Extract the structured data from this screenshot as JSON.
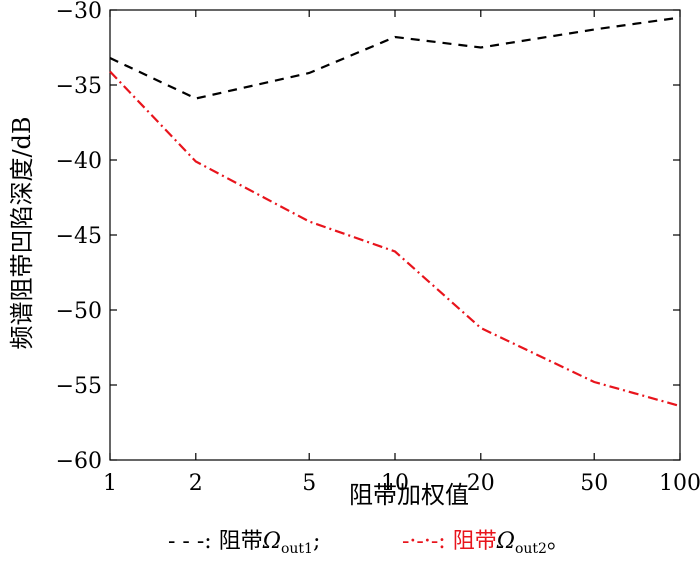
{
  "chart_data": {
    "type": "line",
    "x_scale": "log",
    "x": [
      1,
      2,
      5,
      10,
      20,
      50,
      100
    ],
    "xticks": [
      "1",
      "2",
      "5",
      "10",
      "20",
      "50",
      "100"
    ],
    "xlim": [
      1,
      100
    ],
    "ylim": [
      -60,
      -30
    ],
    "yticks": [
      "−60",
      "−55",
      "−50",
      "−45",
      "−40",
      "−35",
      "−30"
    ],
    "ytick_values": [
      -60,
      -55,
      -50,
      -45,
      -40,
      -35,
      -30
    ],
    "xlabel": "阻带加权值",
    "ylabel": "频谱阻带凹陷深度/dB",
    "grid": false,
    "legend_position": "bottom",
    "series": [
      {
        "name": "阻带Ωout1",
        "legend_prefix": "- - -: 阻带",
        "legend_symbol": "Ω",
        "legend_sub": "out1",
        "legend_suffix": ";",
        "color": "#000000",
        "style": "dashed",
        "values": [
          -33.2,
          -35.9,
          -34.2,
          -31.8,
          -32.5,
          -31.3,
          -30.5
        ]
      },
      {
        "name": "阻带Ωout2",
        "legend_prefix": "-·-·-: 阻带",
        "legend_symbol": "Ω",
        "legend_sub": "out2",
        "legend_suffix": "。",
        "color": "#e8141c",
        "style": "dashdot",
        "values": [
          -34.1,
          -40.1,
          -44.1,
          -46.1,
          -51.2,
          -54.8,
          -56.4
        ]
      }
    ]
  }
}
